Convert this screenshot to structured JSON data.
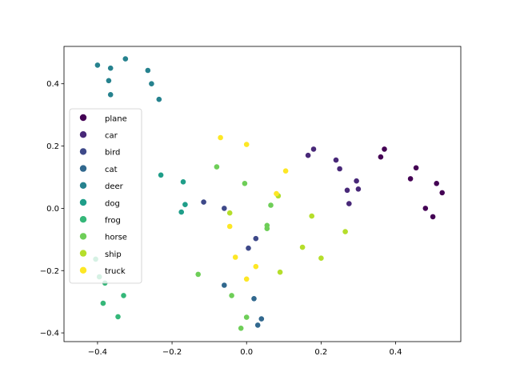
{
  "chart_data": {
    "type": "scatter",
    "title": "",
    "xlabel": "",
    "ylabel": "",
    "xlim": [
      -0.49,
      0.575
    ],
    "ylim": [
      -0.428,
      0.52
    ],
    "xticks": [
      -0.4,
      -0.2,
      0.0,
      0.2,
      0.4
    ],
    "xtick_labels": [
      "−0.4",
      "−0.2",
      "0.0",
      "0.2",
      "0.4"
    ],
    "yticks": [
      -0.4,
      -0.2,
      0.0,
      0.2,
      0.4
    ],
    "ytick_labels": [
      "−0.4",
      "−0.2",
      "0.0",
      "0.2",
      "0.4"
    ],
    "grid": false,
    "legend_position": "center-left",
    "series": [
      {
        "name": "plane",
        "color": "#440154",
        "points": [
          [
            0.37,
            0.19
          ],
          [
            0.36,
            0.165
          ],
          [
            0.455,
            0.13
          ],
          [
            0.44,
            0.095
          ],
          [
            0.51,
            0.08
          ],
          [
            0.525,
            0.05
          ],
          [
            0.48,
            0.0
          ],
          [
            0.5,
            -0.027
          ]
        ]
      },
      {
        "name": "car",
        "color": "#482878",
        "points": [
          [
            0.18,
            0.19
          ],
          [
            0.165,
            0.17
          ],
          [
            0.24,
            0.155
          ],
          [
            0.25,
            0.127
          ],
          [
            0.295,
            0.088
          ],
          [
            0.27,
            0.058
          ],
          [
            0.3,
            0.062
          ],
          [
            0.275,
            0.015
          ]
        ]
      },
      {
        "name": "bird",
        "color": "#3e4989",
        "points": [
          [
            -0.115,
            0.02
          ],
          [
            -0.06,
            0.0
          ],
          [
            0.025,
            -0.097
          ],
          [
            0.005,
            -0.128
          ]
        ]
      },
      {
        "name": "cat",
        "color": "#31688e",
        "points": [
          [
            -0.06,
            -0.247
          ],
          [
            0.02,
            -0.29
          ],
          [
            0.04,
            -0.355
          ],
          [
            0.03,
            -0.375
          ]
        ]
      },
      {
        "name": "deer",
        "color": "#26828e",
        "points": [
          [
            -0.4,
            0.46
          ],
          [
            -0.325,
            0.48
          ],
          [
            -0.365,
            0.45
          ],
          [
            -0.37,
            0.41
          ],
          [
            -0.265,
            0.443
          ],
          [
            -0.255,
            0.4
          ],
          [
            -0.365,
            0.365
          ],
          [
            -0.235,
            0.35
          ]
        ]
      },
      {
        "name": "dog",
        "color": "#1f9e89",
        "points": [
          [
            -0.23,
            0.107
          ],
          [
            -0.17,
            0.085
          ],
          [
            -0.165,
            0.012
          ],
          [
            -0.175,
            -0.012
          ]
        ]
      },
      {
        "name": "frog",
        "color": "#35b779",
        "points": [
          [
            -0.405,
            -0.163
          ],
          [
            -0.395,
            -0.22
          ],
          [
            -0.38,
            -0.24
          ],
          [
            -0.385,
            -0.305
          ],
          [
            -0.33,
            -0.28
          ],
          [
            -0.345,
            -0.348
          ]
        ]
      },
      {
        "name": "horse",
        "color": "#6ece58",
        "points": [
          [
            -0.08,
            0.133
          ],
          [
            -0.005,
            0.08
          ],
          [
            0.065,
            0.01
          ],
          [
            0.085,
            0.04
          ],
          [
            0.055,
            -0.055
          ],
          [
            0.055,
            -0.065
          ],
          [
            -0.13,
            -0.212
          ],
          [
            -0.04,
            -0.28
          ],
          [
            -0.015,
            -0.385
          ],
          [
            0.0,
            -0.35
          ]
        ]
      },
      {
        "name": "ship",
        "color": "#b5de2b",
        "points": [
          [
            0.085,
            0.04
          ],
          [
            -0.045,
            -0.015
          ],
          [
            0.175,
            -0.025
          ],
          [
            0.15,
            -0.125
          ],
          [
            0.2,
            -0.16
          ],
          [
            0.265,
            -0.075
          ],
          [
            0.09,
            -0.205
          ]
        ]
      },
      {
        "name": "truck",
        "color": "#fde725",
        "points": [
          [
            -0.07,
            0.227
          ],
          [
            0.0,
            0.205
          ],
          [
            0.105,
            0.12
          ],
          [
            0.08,
            0.047
          ],
          [
            -0.045,
            -0.058
          ],
          [
            -0.03,
            -0.157
          ],
          [
            0.025,
            -0.187
          ],
          [
            0.0,
            -0.227
          ]
        ]
      }
    ]
  }
}
